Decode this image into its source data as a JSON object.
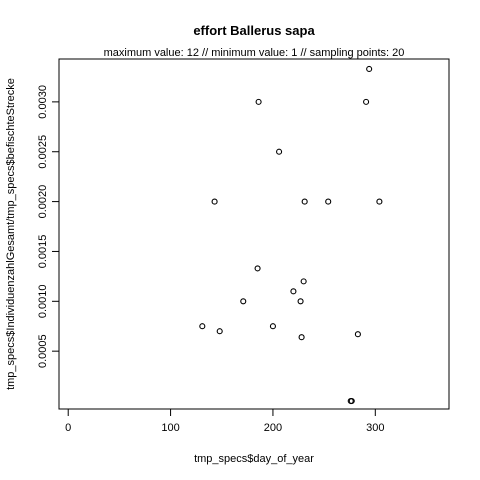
{
  "chart_data": {
    "type": "scatter",
    "title": "effort Ballerus sapa",
    "subtitle": "maximum value: 12  //  minimum value: 1  // sampling points: 20",
    "xlabel": "tmp_specs$day_of_year",
    "ylabel": "tmp_specs$IndividuenzahlGesamt/tmp_specs$befischteStrecke",
    "xlim": [
      -9,
      372
    ],
    "ylim": [
      -8e-05,
      0.00343
    ],
    "x_ticks": [
      0,
      100,
      200,
      300
    ],
    "x_tick_labels": [
      "0",
      "100",
      "200",
      "300"
    ],
    "y_ticks": [
      0.0005,
      0.001,
      0.0015,
      0.002,
      0.0025,
      0.003
    ],
    "y_tick_labels": [
      "0.0005",
      "0.0010",
      "0.0015",
      "0.0020",
      "0.0025",
      "0.0030"
    ],
    "grid": false,
    "legend": "none",
    "points": [
      {
        "x": 294,
        "y": 0.00333
      },
      {
        "x": 186,
        "y": 0.003
      },
      {
        "x": 291,
        "y": 0.003
      },
      {
        "x": 206,
        "y": 0.0025
      },
      {
        "x": 143,
        "y": 0.002
      },
      {
        "x": 231,
        "y": 0.002
      },
      {
        "x": 254,
        "y": 0.002
      },
      {
        "x": 304,
        "y": 0.002
      },
      {
        "x": 185,
        "y": 0.00133
      },
      {
        "x": 230,
        "y": 0.0012
      },
      {
        "x": 220,
        "y": 0.0011
      },
      {
        "x": 171,
        "y": 0.001
      },
      {
        "x": 227,
        "y": 0.001
      },
      {
        "x": 131,
        "y": 0.00075
      },
      {
        "x": 200,
        "y": 0.00075
      },
      {
        "x": 148,
        "y": 0.0007
      },
      {
        "x": 283,
        "y": 0.00067
      },
      {
        "x": 228,
        "y": 0.00064
      },
      {
        "x": 276,
        "y": 0.0
      },
      {
        "x": 277,
        "y": 0.0
      }
    ]
  }
}
